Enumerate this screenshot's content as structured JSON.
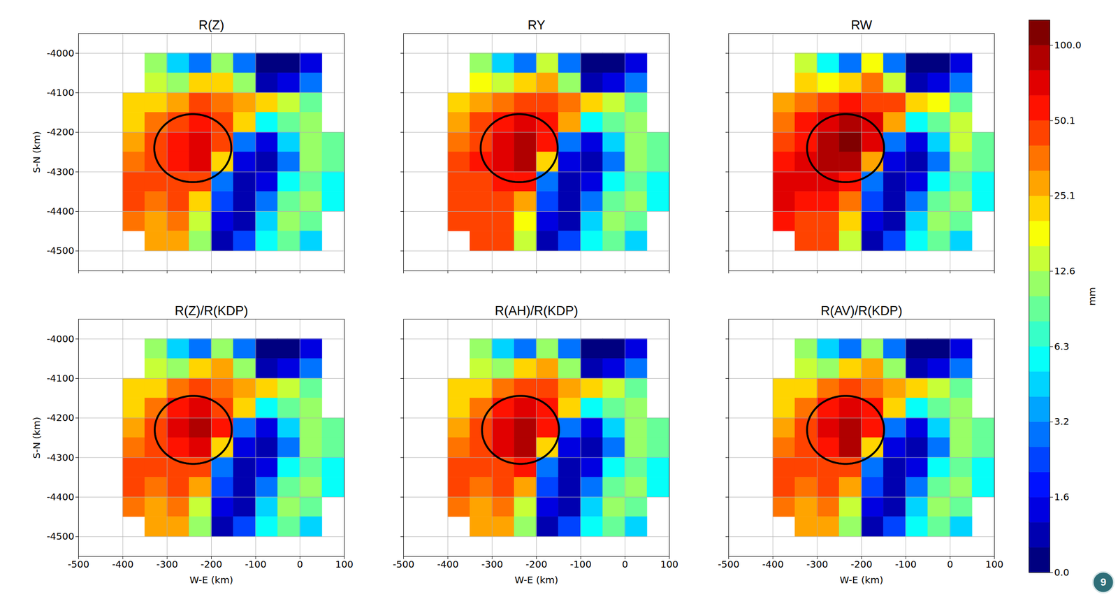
{
  "chart_data": [
    {
      "type": "heatmap",
      "title": "R(Z)",
      "ylabel": "S-N (km)",
      "tick_labels": "y",
      "grid": true,
      "xlim": [
        -500,
        100
      ],
      "ylim": [
        -4550,
        -3950
      ],
      "xticks": [
        -500,
        -400,
        -300,
        -200,
        -100,
        0,
        100
      ],
      "yticks": [
        -4500,
        -4400,
        -4300,
        -4200,
        -4100,
        -4000
      ],
      "x_edges": [
        -400,
        -350,
        -300,
        -250,
        -200,
        -150,
        -100,
        -50,
        0,
        50,
        100
      ],
      "y_edges": [
        -4000,
        -4050,
        -4100,
        -4150,
        -4200,
        -4250,
        -4300,
        -4350,
        -4400,
        -4450,
        -4500
      ],
      "cells": [
        [
          null,
          10,
          4,
          3,
          12,
          3,
          0.5,
          0.5,
          1.5,
          null
        ],
        [
          null,
          15,
          12,
          20,
          25,
          10,
          1,
          1.5,
          3,
          null
        ],
        [
          20,
          25,
          30,
          40,
          35,
          30,
          20,
          15,
          8,
          null
        ],
        [
          22,
          35,
          50,
          55,
          45,
          25,
          6,
          8,
          12,
          null
        ],
        [
          30,
          40,
          60,
          70,
          50,
          3,
          1.5,
          4,
          12,
          8
        ],
        [
          35,
          45,
          55,
          65,
          20,
          1.5,
          1,
          3,
          10,
          8
        ],
        [
          40,
          40,
          45,
          45,
          3,
          1,
          1.5,
          6,
          8,
          5
        ],
        [
          40,
          35,
          40,
          25,
          2,
          1,
          3,
          8,
          10,
          6
        ],
        [
          35,
          30,
          35,
          15,
          1.5,
          1,
          4,
          10,
          8,
          null
        ],
        [
          null,
          30,
          30,
          12,
          1,
          2,
          5,
          8,
          4,
          null
        ]
      ],
      "highlight": {
        "cx": -242,
        "cy": -4240,
        "rx": 87,
        "ry": 86
      }
    },
    {
      "type": "heatmap",
      "title": "RY",
      "tick_labels": false,
      "grid": true,
      "xlim": [
        -500,
        100
      ],
      "ylim": [
        -4550,
        -3950
      ],
      "xticks": [
        -500,
        -400,
        -300,
        -200,
        -100,
        0,
        100
      ],
      "yticks": [
        -4500,
        -4400,
        -4300,
        -4200,
        -4100,
        -4000
      ],
      "x_edges": [
        -400,
        -350,
        -300,
        -250,
        -200,
        -150,
        -100,
        -50,
        0,
        50,
        100
      ],
      "y_edges": [
        -4000,
        -4050,
        -4100,
        -4150,
        -4200,
        -4250,
        -4300,
        -4350,
        -4400,
        -4450,
        -4500
      ],
      "cells": [
        [
          null,
          12,
          4,
          3,
          14,
          3,
          0.5,
          0.5,
          1.5,
          null
        ],
        [
          null,
          18,
          14,
          22,
          30,
          12,
          1,
          1.5,
          3,
          null
        ],
        [
          25,
          30,
          38,
          50,
          40,
          35,
          22,
          15,
          8,
          null
        ],
        [
          28,
          45,
          60,
          70,
          55,
          28,
          6,
          8,
          12,
          null
        ],
        [
          38,
          50,
          75,
          85,
          60,
          3,
          1.5,
          4,
          12,
          8
        ],
        [
          45,
          55,
          70,
          80,
          25,
          1.5,
          1,
          3,
          10,
          8
        ],
        [
          50,
          50,
          55,
          55,
          3,
          1,
          1.5,
          6,
          8,
          5
        ],
        [
          50,
          45,
          50,
          30,
          2,
          1,
          3,
          8,
          10,
          6
        ],
        [
          45,
          40,
          45,
          18,
          1.5,
          1,
          4,
          10,
          8,
          null
        ],
        [
          null,
          40,
          40,
          14,
          1,
          2,
          5,
          8,
          4,
          null
        ]
      ],
      "highlight": {
        "cx": -239,
        "cy": -4240,
        "rx": 87,
        "ry": 86
      }
    },
    {
      "type": "heatmap",
      "title": "RW",
      "tick_labels": false,
      "grid": true,
      "xlim": [
        -500,
        100
      ],
      "ylim": [
        -4550,
        -3950
      ],
      "xticks": [
        -500,
        -400,
        -300,
        -200,
        -100,
        0,
        100
      ],
      "yticks": [
        -4500,
        -4400,
        -4300,
        -4200,
        -4100,
        -4000
      ],
      "x_edges": [
        -400,
        -350,
        -300,
        -250,
        -200,
        -150,
        -100,
        -50,
        0,
        50,
        100
      ],
      "y_edges": [
        -4000,
        -4050,
        -4100,
        -4150,
        -4200,
        -4250,
        -4300,
        -4350,
        -4400,
        -4450,
        -4500
      ],
      "cells": [
        [
          null,
          14,
          5,
          3,
          16,
          3,
          0.5,
          0.5,
          1.5,
          null
        ],
        [
          null,
          20,
          16,
          25,
          35,
          14,
          1,
          1.5,
          3,
          null
        ],
        [
          30,
          35,
          45,
          60,
          50,
          40,
          25,
          18,
          8,
          null
        ],
        [
          35,
          55,
          70,
          85,
          65,
          30,
          6,
          8,
          14,
          null
        ],
        [
          45,
          60,
          85,
          100,
          70,
          3,
          1.5,
          4,
          14,
          8
        ],
        [
          55,
          65,
          80,
          95,
          30,
          1.5,
          1,
          3,
          12,
          8
        ],
        [
          65,
          65,
          65,
          60,
          3,
          1,
          1.5,
          6,
          8,
          5
        ],
        [
          65,
          60,
          60,
          35,
          2,
          1,
          3,
          8,
          10,
          6
        ],
        [
          55,
          50,
          50,
          20,
          1.5,
          1,
          4,
          10,
          8,
          null
        ],
        [
          null,
          45,
          45,
          15,
          1,
          2,
          5,
          8,
          4,
          null
        ]
      ],
      "highlight": {
        "cx": -236,
        "cy": -4240,
        "rx": 87,
        "ry": 86
      }
    },
    {
      "type": "heatmap",
      "title": "R(Z)/R(KDP)",
      "ylabel": "S-N (km)",
      "xlabel": "W-E (km)",
      "tick_labels": true,
      "grid": true,
      "xlim": [
        -500,
        100
      ],
      "ylim": [
        -4550,
        -3950
      ],
      "xticks": [
        -500,
        -400,
        -300,
        -200,
        -100,
        0,
        100
      ],
      "yticks": [
        -4500,
        -4400,
        -4300,
        -4200,
        -4100,
        -4000
      ],
      "x_edges": [
        -400,
        -350,
        -300,
        -250,
        -200,
        -150,
        -100,
        -50,
        0,
        50,
        100
      ],
      "y_edges": [
        -4000,
        -4050,
        -4100,
        -4150,
        -4200,
        -4250,
        -4300,
        -4350,
        -4400,
        -4450,
        -4500
      ],
      "cells": [
        [
          null,
          10,
          4,
          3,
          12,
          3,
          0.5,
          0.5,
          1.5,
          null
        ],
        [
          null,
          15,
          12,
          20,
          28,
          10,
          1,
          1.5,
          3,
          null
        ],
        [
          20,
          25,
          32,
          45,
          38,
          30,
          20,
          15,
          8,
          null
        ],
        [
          22,
          35,
          55,
          65,
          50,
          25,
          6,
          8,
          12,
          null
        ],
        [
          30,
          40,
          70,
          85,
          55,
          3,
          1.5,
          4,
          12,
          8
        ],
        [
          35,
          45,
          60,
          75,
          22,
          1.5,
          1,
          3,
          10,
          8
        ],
        [
          40,
          40,
          48,
          50,
          3,
          1,
          1.5,
          6,
          8,
          5
        ],
        [
          40,
          35,
          40,
          28,
          2,
          1,
          3,
          8,
          10,
          6
        ],
        [
          35,
          30,
          35,
          15,
          1.5,
          1,
          4,
          10,
          8,
          null
        ],
        [
          null,
          30,
          30,
          12,
          1,
          2,
          5,
          8,
          4,
          null
        ]
      ],
      "highlight": {
        "cx": -241,
        "cy": -4230,
        "rx": 87,
        "ry": 86
      }
    },
    {
      "type": "heatmap",
      "title": "R(AH)/R(KDP)",
      "xlabel": "W-E (km)",
      "tick_labels": "x",
      "grid": true,
      "xlim": [
        -500,
        100
      ],
      "ylim": [
        -4550,
        -3950
      ],
      "xticks": [
        -500,
        -400,
        -300,
        -200,
        -100,
        0,
        100
      ],
      "yticks": [
        -4500,
        -4400,
        -4300,
        -4200,
        -4100,
        -4000
      ],
      "x_edges": [
        -400,
        -350,
        -300,
        -250,
        -200,
        -150,
        -100,
        -50,
        0,
        50,
        100
      ],
      "y_edges": [
        -4000,
        -4050,
        -4100,
        -4150,
        -4200,
        -4250,
        -4300,
        -4350,
        -4400,
        -4450,
        -4500
      ],
      "cells": [
        [
          null,
          10,
          4,
          3,
          12,
          3,
          0.5,
          0.5,
          1.5,
          null
        ],
        [
          null,
          15,
          12,
          20,
          28,
          10,
          1,
          1.5,
          3,
          null
        ],
        [
          20,
          25,
          35,
          50,
          40,
          30,
          20,
          15,
          8,
          null
        ],
        [
          22,
          38,
          60,
          75,
          55,
          25,
          6,
          8,
          12,
          null
        ],
        [
          30,
          42,
          75,
          95,
          60,
          3,
          1.5,
          4,
          12,
          8
        ],
        [
          35,
          45,
          65,
          85,
          25,
          1.5,
          1,
          3,
          10,
          8
        ],
        [
          40,
          40,
          50,
          55,
          3,
          1,
          1.5,
          6,
          8,
          5
        ],
        [
          40,
          35,
          40,
          28,
          2,
          1,
          3,
          8,
          10,
          6
        ],
        [
          35,
          30,
          35,
          15,
          1.5,
          1,
          4,
          10,
          8,
          null
        ],
        [
          null,
          30,
          30,
          12,
          1,
          2,
          5,
          8,
          4,
          null
        ]
      ],
      "highlight": {
        "cx": -236,
        "cy": -4230,
        "rx": 87,
        "ry": 86
      }
    },
    {
      "type": "heatmap",
      "title": "R(AV)/R(KDP)",
      "xlabel": "W-E (km)",
      "tick_labels": "x",
      "grid": true,
      "xlim": [
        -500,
        100
      ],
      "ylim": [
        -4550,
        -3950
      ],
      "xticks": [
        -500,
        -400,
        -300,
        -200,
        -100,
        0,
        100
      ],
      "yticks": [
        -4500,
        -4400,
        -4300,
        -4200,
        -4100,
        -4000
      ],
      "x_edges": [
        -400,
        -350,
        -300,
        -250,
        -200,
        -150,
        -100,
        -50,
        0,
        50,
        100
      ],
      "y_edges": [
        -4000,
        -4050,
        -4100,
        -4150,
        -4200,
        -4250,
        -4300,
        -4350,
        -4400,
        -4450,
        -4500
      ],
      "cells": [
        [
          null,
          10,
          4,
          3,
          12,
          3,
          0.5,
          0.5,
          1.5,
          null
        ],
        [
          null,
          15,
          12,
          20,
          28,
          10,
          1,
          1.5,
          3,
          null
        ],
        [
          20,
          25,
          32,
          45,
          38,
          30,
          20,
          15,
          8,
          null
        ],
        [
          22,
          36,
          58,
          70,
          52,
          25,
          6,
          8,
          12,
          null
        ],
        [
          30,
          41,
          72,
          90,
          58,
          3,
          1.5,
          4,
          12,
          8
        ],
        [
          35,
          45,
          62,
          80,
          23,
          1.5,
          1,
          3,
          10,
          8
        ],
        [
          40,
          40,
          48,
          50,
          3,
          1,
          1.5,
          6,
          8,
          5
        ],
        [
          40,
          35,
          40,
          28,
          2,
          1,
          3,
          8,
          10,
          6
        ],
        [
          35,
          30,
          35,
          15,
          1.5,
          1,
          4,
          10,
          8,
          null
        ],
        [
          null,
          30,
          30,
          12,
          1,
          2,
          5,
          8,
          4,
          null
        ]
      ],
      "highlight": {
        "cx": -236,
        "cy": -4230,
        "rx": 87,
        "ry": 86
      }
    }
  ],
  "colorbar": {
    "label": "mm",
    "bounds": [
      0,
      1.0,
      1.3,
      1.6,
      2.0,
      2.5,
      3.2,
      4.0,
      5.0,
      6.3,
      7.9,
      10.0,
      12.6,
      15.8,
      20.0,
      25.1,
      31.6,
      39.8,
      50.1,
      63.1,
      79.4,
      100.0,
      125.9
    ],
    "ticks": [
      {
        "value": 0,
        "label": "0.0"
      },
      1.6,
      3.2,
      6.3,
      12.6,
      25.1,
      50.1,
      {
        "value": 100,
        "label": "100.0"
      }
    ]
  },
  "slide_number": "9"
}
